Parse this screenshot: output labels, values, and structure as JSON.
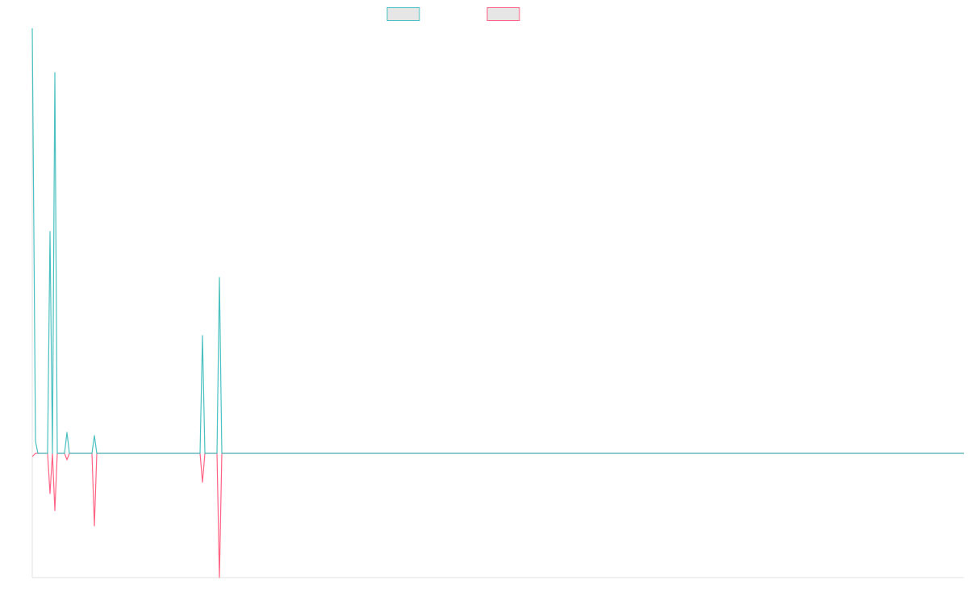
{
  "chart_data": {
    "type": "line",
    "x": [
      0,
      4,
      7,
      19,
      22,
      25,
      28,
      31,
      40,
      43,
      46,
      74,
      77,
      80,
      208,
      211,
      214,
      229,
      232,
      235,
      1155
    ],
    "series": [
      {
        "color": "#ff6384",
        "values": [
          -4,
          0,
          0,
          0,
          -50,
          0,
          -71,
          0,
          0,
          -8,
          0,
          0,
          -90,
          0,
          0,
          -36,
          0,
          0,
          -154,
          0,
          0
        ]
      },
      {
        "color": "#4bc0c0",
        "values": [
          527,
          15,
          0,
          0,
          275,
          0,
          472,
          0,
          0,
          26,
          0,
          0,
          22,
          0,
          0,
          146,
          0,
          0,
          218,
          0,
          0
        ]
      }
    ],
    "xlim": [
      0,
      1155
    ],
    "ylim": [
      -154,
      527
    ],
    "legend": "top"
  }
}
